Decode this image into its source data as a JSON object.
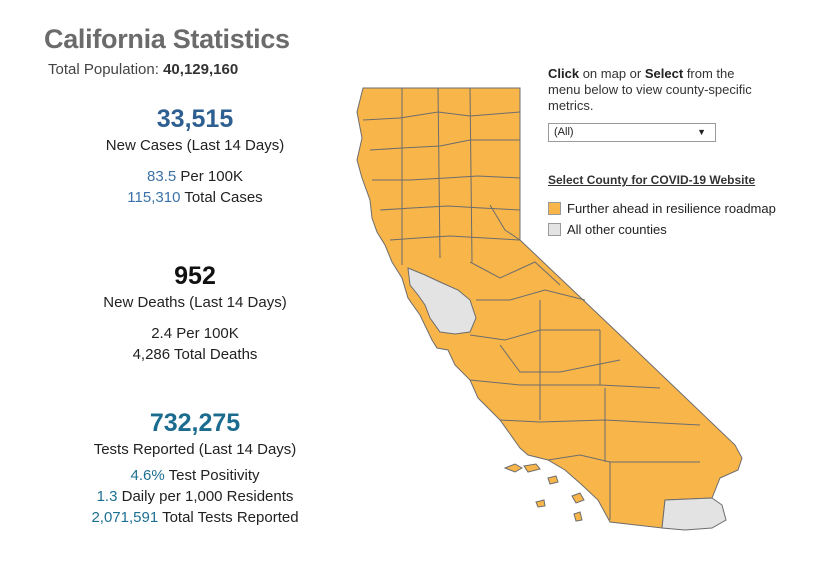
{
  "title": "California Statistics",
  "population": {
    "label": "Total Population:",
    "value": "40,129,160"
  },
  "cases": {
    "new": "33,515",
    "new_label": "New Cases (Last 14 Days)",
    "per100k": "83.5",
    "per100k_label": "Per 100K",
    "total": "115,310",
    "total_label": "Total Cases"
  },
  "deaths": {
    "new": "952",
    "new_label": "New Deaths (Last 14 Days)",
    "per100k": "2.4",
    "per100k_label": "Per 100K",
    "total": "4,286",
    "total_label": "Total Deaths"
  },
  "tests": {
    "reported": "732,275",
    "reported_label": "Tests Reported (Last 14 Days)",
    "positivity": "4.6%",
    "positivity_label": "Test Positivity",
    "daily": "1.3",
    "daily_label": "Daily per 1,000 Residents",
    "total": "2,071,591",
    "total_label": "Total Tests Reported"
  },
  "instructions": {
    "click_word": "Click",
    "text1": "on map or",
    "select_word": "Select",
    "text2": "from the menu below to view county-specific metrics."
  },
  "county_select": {
    "value": "(All)"
  },
  "website_link": "Select County for COVID-19 Website",
  "legend": [
    {
      "label": "Further ahead in resilience roadmap",
      "color": "#f8b54a"
    },
    {
      "label": "All other counties",
      "color": "#e3e3e3"
    }
  ],
  "colors": {
    "ahead": "#f8b54a",
    "other": "#e3e3e3",
    "border": "#6d6d6d",
    "title": "#6b6b6b",
    "cases_blue": "#2e5f91",
    "tests_teal": "#1b6c8f"
  },
  "icons": {
    "dropdown": "caret-down-icon"
  }
}
